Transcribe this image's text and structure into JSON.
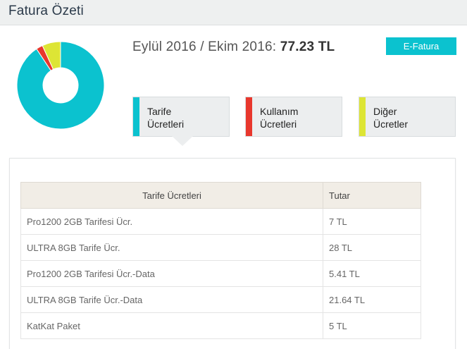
{
  "header": {
    "title": "Fatura Özeti"
  },
  "summary": {
    "period": "Eylül 2016 / Ekim 2016:",
    "amount": "77.23 TL",
    "efatura_label": "E-Fatura"
  },
  "donut": {
    "segments": [
      {
        "value": 70.05,
        "color": "#0bc2cf"
      },
      {
        "value": 1.9,
        "color": "#e8372d"
      },
      {
        "value": 5.28,
        "color": "#dde535"
      }
    ]
  },
  "categories": [
    {
      "label": "Tarife\nÜcretleri",
      "color": "#0bc2cf"
    },
    {
      "label": "Kullanım\nÜcretleri",
      "color": "#e8372d"
    },
    {
      "label": "Diğer\nÜcretler",
      "color": "#dde535"
    }
  ],
  "table": {
    "headers": [
      "Tarife Ücretleri",
      "Tutar"
    ],
    "rows": [
      [
        "Pro1200 2GB Tarifesi Ücr.",
        "7 TL"
      ],
      [
        "ULTRA 8GB Tarife Ücr.",
        "28 TL"
      ],
      [
        "Pro1200 2GB Tarifesi Ücr.-Data",
        "5.41 TL"
      ],
      [
        "ULTRA 8GB Tarife Ücr.-Data",
        "21.64 TL"
      ],
      [
        "KatKat Paket",
        "5 TL"
      ]
    ]
  }
}
